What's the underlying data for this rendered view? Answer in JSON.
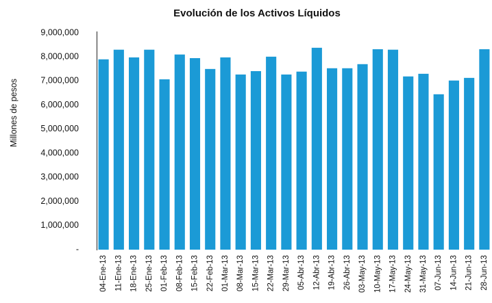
{
  "chart_data": {
    "type": "bar",
    "title": "Evolución de los Activos Líquidos",
    "y_label": "Millones de pesos",
    "categories": [
      "04-Ene-13",
      "11-Ene-13",
      "18-Ene-13",
      "25-Ene-13",
      "01-Feb-13",
      "08-Feb-13",
      "15-Feb-13",
      "22-Feb-13",
      "01-Mar-13",
      "08-Mar-13",
      "15-Mar-13",
      "22-Mar-13",
      "29-Mar-13",
      "05-Abr-13",
      "12-Abr-13",
      "19-Abr-13",
      "26-Abr-13",
      "03-May-13",
      "10-May-13",
      "17-May-13",
      "24-May-13",
      "31-May-13",
      "07-Jun-13",
      "14-Jun-13",
      "21-Jun-13",
      "28-Jun-13"
    ],
    "values": [
      7900000,
      8300000,
      7980000,
      8300000,
      7070000,
      8100000,
      7950000,
      7500000,
      7980000,
      7270000,
      7410000,
      8010000,
      7270000,
      7390000,
      8380000,
      7530000,
      7530000,
      7700000,
      8320000,
      8300000,
      7190000,
      7300000,
      6450000,
      7020000,
      7130000,
      8320000
    ],
    "color": "#1b9ad6",
    "ylim": [
      0,
      9000000
    ],
    "yticks": [
      {
        "value": 0,
        "label": "-"
      },
      {
        "value": 1000000,
        "label": "1,000,000"
      },
      {
        "value": 2000000,
        "label": "2,000,000"
      },
      {
        "value": 3000000,
        "label": "3,000,000"
      },
      {
        "value": 4000000,
        "label": "4,000,000"
      },
      {
        "value": 5000000,
        "label": "5,000,000"
      },
      {
        "value": 6000000,
        "label": "6,000,000"
      },
      {
        "value": 7000000,
        "label": "7,000,000"
      },
      {
        "value": 8000000,
        "label": "8,000,000"
      },
      {
        "value": 9000000,
        "label": "9,000,000"
      }
    ],
    "grid": false
  }
}
